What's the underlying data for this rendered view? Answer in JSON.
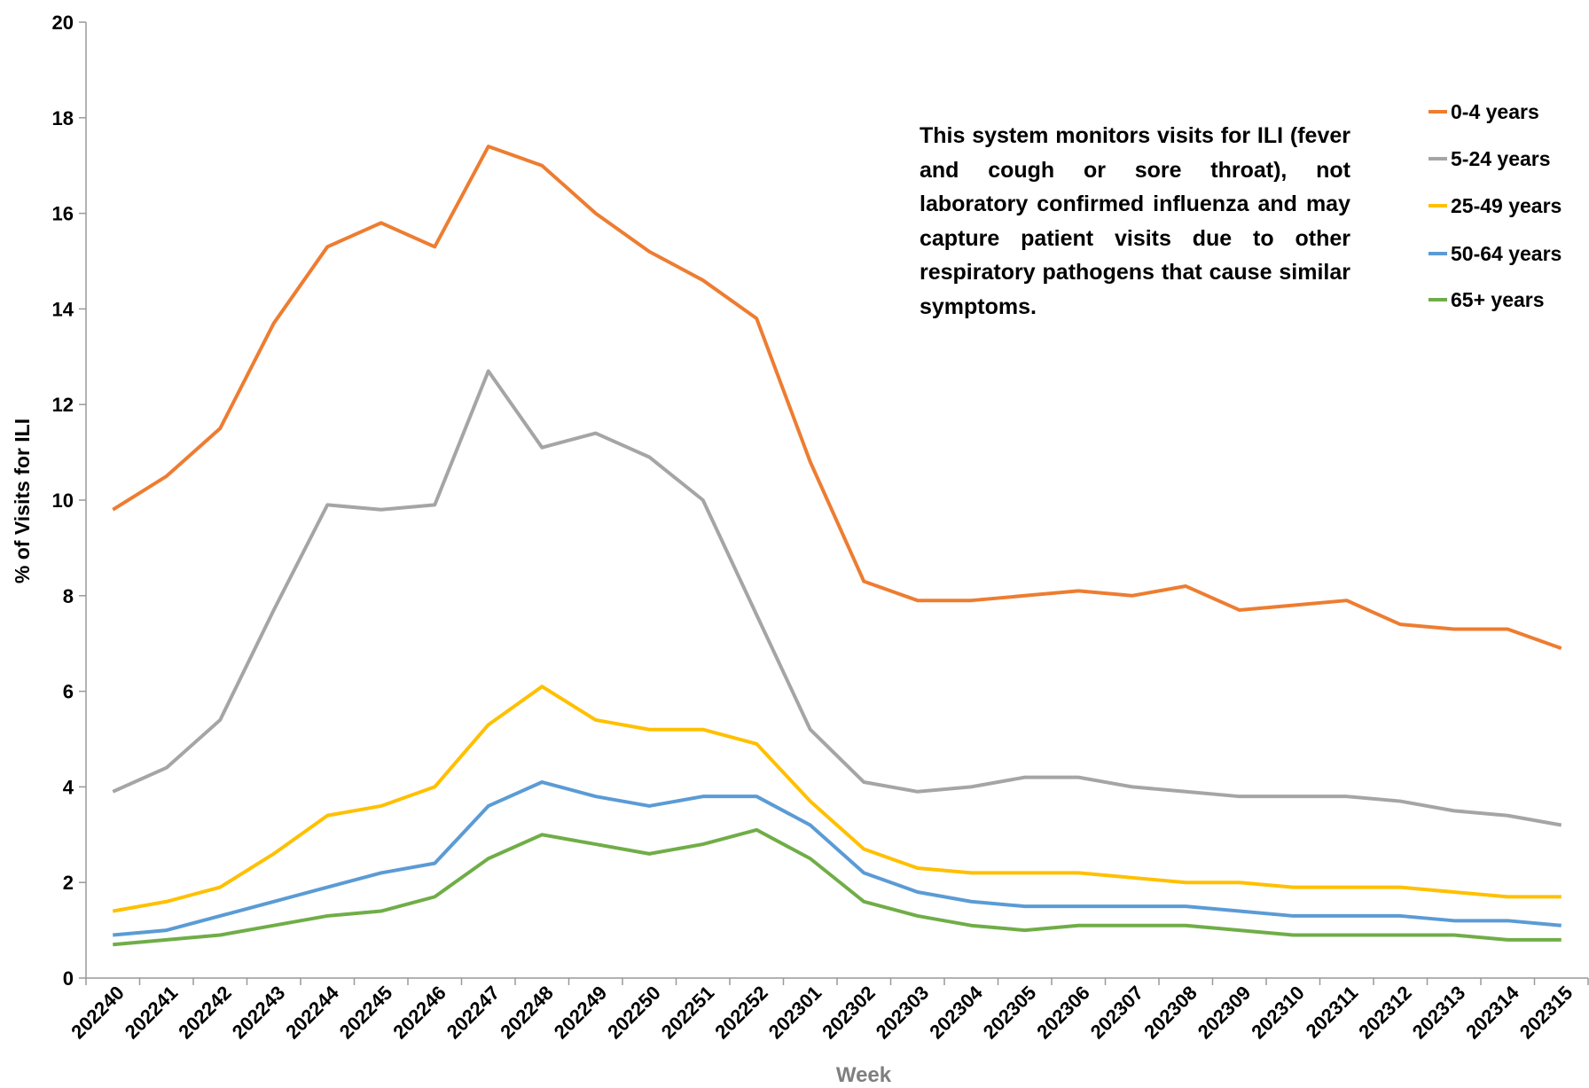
{
  "chart_data": {
    "type": "line",
    "annotation": "This system monitors visits for ILI (fever and cough or sore throat), not laboratory confirmed influenza and may capture patient visits due to other respiratory pathogens that cause similar symptoms.",
    "x_label": "Week",
    "y_label": "% of Visits for ILI",
    "categories": [
      "202240",
      "202241",
      "202242",
      "202243",
      "202244",
      "202245",
      "202246",
      "202247",
      "202248",
      "202249",
      "202250",
      "202251",
      "202252",
      "202301",
      "202302",
      "202303",
      "202304",
      "202305",
      "202306",
      "202307",
      "202308",
      "202309",
      "202310",
      "202311",
      "202312",
      "202313",
      "202314",
      "202315"
    ],
    "ylim": [
      0,
      20
    ],
    "yticks": [
      0,
      2,
      4,
      6,
      8,
      10,
      12,
      14,
      16,
      18,
      20
    ],
    "grid": false,
    "legend": "right",
    "series": [
      {
        "name": "0-4 years",
        "color": "#ed7d31",
        "values": [
          9.8,
          10.5,
          11.5,
          13.7,
          15.3,
          15.8,
          15.3,
          17.4,
          17.0,
          16.0,
          15.2,
          14.6,
          13.8,
          10.8,
          8.3,
          7.9,
          7.9,
          8.0,
          8.1,
          8.0,
          8.2,
          7.7,
          7.8,
          7.9,
          7.4,
          7.3,
          7.3,
          6.9
        ]
      },
      {
        "name": "5-24 years",
        "color": "#a5a5a5",
        "values": [
          3.9,
          4.4,
          5.4,
          7.7,
          9.9,
          9.8,
          9.9,
          12.7,
          11.1,
          11.4,
          10.9,
          10.0,
          7.6,
          5.2,
          4.1,
          3.9,
          4.0,
          4.2,
          4.2,
          4.0,
          3.9,
          3.8,
          3.8,
          3.8,
          3.7,
          3.5,
          3.4,
          3.2
        ]
      },
      {
        "name": "25-49 years",
        "color": "#ffc000",
        "values": [
          1.4,
          1.6,
          1.9,
          2.6,
          3.4,
          3.6,
          4.0,
          5.3,
          6.1,
          5.4,
          5.2,
          5.2,
          4.9,
          3.7,
          2.7,
          2.3,
          2.2,
          2.2,
          2.2,
          2.1,
          2.0,
          2.0,
          1.9,
          1.9,
          1.9,
          1.8,
          1.7,
          1.7
        ]
      },
      {
        "name": "50-64 years",
        "color": "#5b9bd5",
        "values": [
          0.9,
          1.0,
          1.3,
          1.6,
          1.9,
          2.2,
          2.4,
          3.6,
          4.1,
          3.8,
          3.6,
          3.8,
          3.8,
          3.2,
          2.2,
          1.8,
          1.6,
          1.5,
          1.5,
          1.5,
          1.5,
          1.4,
          1.3,
          1.3,
          1.3,
          1.2,
          1.2,
          1.1
        ]
      },
      {
        "name": "65+ years",
        "color": "#70ad47",
        "values": [
          0.7,
          0.8,
          0.9,
          1.1,
          1.3,
          1.4,
          1.7,
          2.5,
          3.0,
          2.8,
          2.6,
          2.8,
          3.1,
          2.5,
          1.6,
          1.3,
          1.1,
          1.0,
          1.1,
          1.1,
          1.1,
          1.0,
          0.9,
          0.9,
          0.9,
          0.9,
          0.8,
          0.8
        ]
      }
    ]
  }
}
